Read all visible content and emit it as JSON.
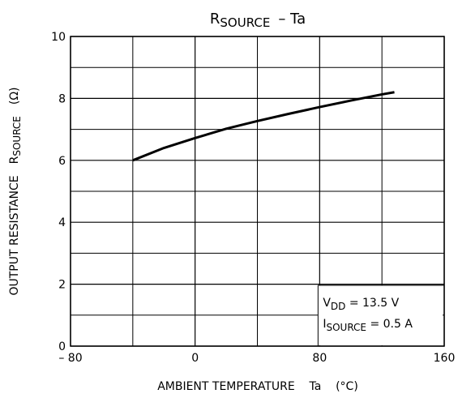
{
  "chart_data": {
    "type": "line",
    "title": {
      "symbol": "R",
      "subscript": "SOURCE",
      "rest": "–  Ta"
    },
    "y_label": {
      "text": "OUTPUT RESISTANCE",
      "symbol": "R",
      "subscript": "SOURCE",
      "unit": "(Ω)"
    },
    "x_label": "AMBIENT TEMPERATURE    Ta    (°C)",
    "annotations": [
      {
        "symbol": "V",
        "subscript": "DD",
        "rest": " = 13.5 V"
      },
      {
        "symbol": "I",
        "subscript": "SOURCE",
        "rest": " = 0.5 A"
      }
    ],
    "x": [
      -40,
      -20,
      0,
      20,
      40,
      60,
      80,
      100,
      120,
      128
    ],
    "series": [
      {
        "color": "#000000",
        "values": [
          6.0,
          6.4,
          6.72,
          7.02,
          7.27,
          7.5,
          7.72,
          7.93,
          8.13,
          8.2
        ]
      }
    ],
    "xlim": [
      -80,
      160
    ],
    "xticks": [
      {
        "value": -80,
        "label": "– 80"
      },
      0,
      80,
      160
    ],
    "minor_xticks": [
      -40,
      40,
      120
    ],
    "ylim": [
      0,
      10
    ],
    "yticks": [
      0,
      2,
      4,
      6,
      8,
      10
    ],
    "minor_yticks": [
      1,
      3,
      5,
      7,
      9
    ],
    "grid": true
  }
}
